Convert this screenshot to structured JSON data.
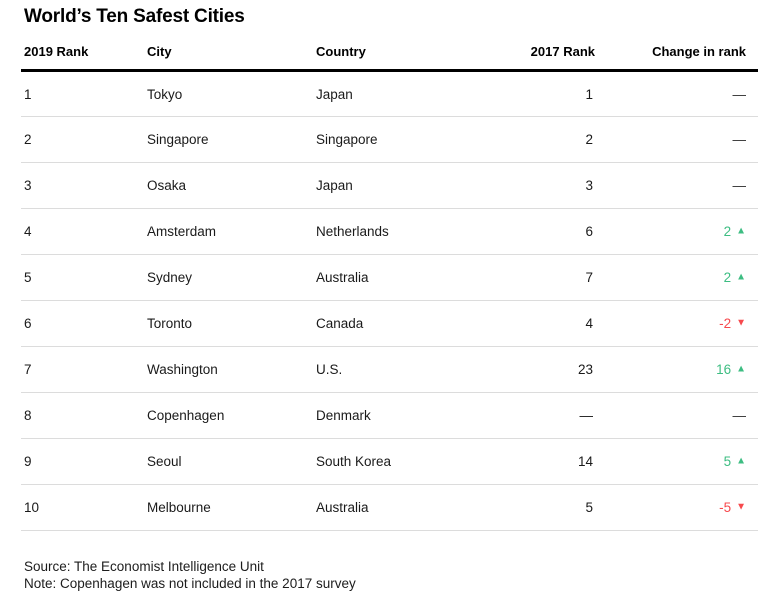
{
  "colors": {
    "positive": "#3dbd82",
    "negative": "#f7494d",
    "divider": "#dcdcdc",
    "header_rule": "#000000",
    "text": "#1a1a1a"
  },
  "icons": {
    "up_triangle": "▲",
    "down_triangle": "▼"
  },
  "chart_data": {
    "type": "table",
    "title": "World’s Ten Safest Cities",
    "columns": [
      "2019 Rank",
      "City",
      "Country",
      "2017 Rank",
      "Change in rank"
    ],
    "rows": [
      {
        "rank_2019": "1",
        "city": "Tokyo",
        "country": "Japan",
        "rank_2017": "1",
        "change": {
          "value": "—",
          "direction": "none"
        }
      },
      {
        "rank_2019": "2",
        "city": "Singapore",
        "country": "Singapore",
        "rank_2017": "2",
        "change": {
          "value": "—",
          "direction": "none"
        }
      },
      {
        "rank_2019": "3",
        "city": "Osaka",
        "country": "Japan",
        "rank_2017": "3",
        "change": {
          "value": "—",
          "direction": "none"
        }
      },
      {
        "rank_2019": "4",
        "city": "Amsterdam",
        "country": "Netherlands",
        "rank_2017": "6",
        "change": {
          "value": "2",
          "direction": "up"
        }
      },
      {
        "rank_2019": "5",
        "city": "Sydney",
        "country": "Australia",
        "rank_2017": "7",
        "change": {
          "value": "2",
          "direction": "up"
        }
      },
      {
        "rank_2019": "6",
        "city": "Toronto",
        "country": "Canada",
        "rank_2017": "4",
        "change": {
          "value": "-2",
          "direction": "down"
        }
      },
      {
        "rank_2019": "7",
        "city": "Washington",
        "country": "U.S.",
        "rank_2017": "23",
        "change": {
          "value": "16",
          "direction": "up"
        }
      },
      {
        "rank_2019": "8",
        "city": "Copenhagen",
        "country": "Denmark",
        "rank_2017": "—",
        "change": {
          "value": "—",
          "direction": "none"
        }
      },
      {
        "rank_2019": "9",
        "city": "Seoul",
        "country": "South Korea",
        "rank_2017": "14",
        "change": {
          "value": "5",
          "direction": "up"
        }
      },
      {
        "rank_2019": "10",
        "city": "Melbourne",
        "country": "Australia",
        "rank_2017": "5",
        "change": {
          "value": "-5",
          "direction": "down"
        }
      }
    ],
    "source": "Source: The Economist Intelligence Unit",
    "note": "Note: Copenhagen was not included in the 2017 survey"
  }
}
